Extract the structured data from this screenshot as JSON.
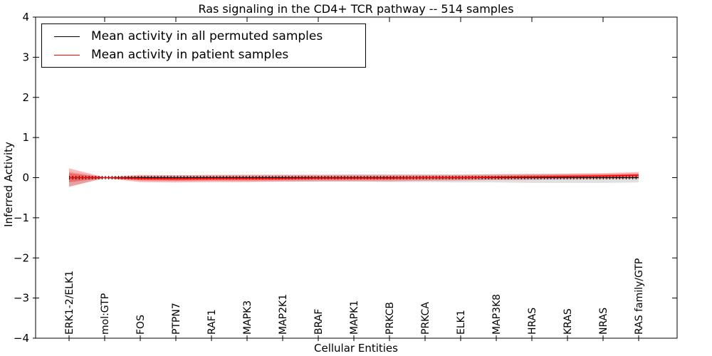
{
  "figure": {
    "title": "Ras signaling in the CD4+ TCR pathway -- 514 samples",
    "xlabel": "Cellular Entities",
    "ylabel": "Inferred Activity"
  },
  "legend": {
    "entries": [
      {
        "label": "Mean activity in all permuted samples",
        "color": "#000000"
      },
      {
        "label": "Mean activity in patient samples",
        "color": "#ff0000"
      }
    ]
  },
  "chart_data": {
    "type": "line",
    "title": "Ras signaling in the CD4+ TCR pathway -- 514 samples",
    "xlabel": "Cellular Entities",
    "ylabel": "Inferred Activity",
    "ylim": [
      -4,
      4
    ],
    "yticks": [
      4,
      3,
      2,
      1,
      0,
      -1,
      -2,
      -3,
      -4
    ],
    "ytick_labels": [
      "4",
      "3",
      "2",
      "1",
      "0",
      "−1",
      "−2",
      "−3",
      "−4"
    ],
    "grid": false,
    "legend_position": "upper left",
    "categories": [
      "ERK1-2/ELK1",
      "mol:GTP",
      "FOS",
      "PTPN7",
      "RAF1",
      "MAPK3",
      "MAP2K1",
      "BRAF",
      "MAPK1",
      "PRKCB",
      "PRKCA",
      "ELK1",
      "MAP3K8",
      "HRAS",
      "KRAS",
      "NRAS",
      "RAS family/GTP"
    ],
    "series": [
      {
        "name": "Mean activity in all permuted samples",
        "color": "#000000",
        "band_color": "#999999",
        "mean": [
          0.0,
          0.0,
          0.0,
          0.0,
          0.0,
          0.0,
          0.0,
          0.0,
          0.0,
          0.0,
          0.0,
          0.0,
          0.0,
          0.0,
          0.0,
          0.0,
          0.0
        ],
        "band_low": [
          -0.22,
          -0.01,
          -0.07,
          -0.08,
          -0.08,
          -0.09,
          -0.09,
          -0.1,
          -0.1,
          -0.11,
          -0.11,
          -0.12,
          -0.12,
          -0.13,
          -0.13,
          -0.13,
          -0.12
        ],
        "band_high": [
          0.15,
          0.01,
          0.05,
          0.06,
          0.06,
          0.07,
          0.07,
          0.07,
          0.08,
          0.08,
          0.08,
          0.08,
          0.09,
          0.09,
          0.09,
          0.09,
          0.08
        ]
      },
      {
        "name": "Mean activity in patient samples",
        "color": "#ff0000",
        "band_color": "#ff0000",
        "mean": [
          0.0,
          0.0,
          -0.02,
          -0.03,
          -0.02,
          -0.02,
          -0.02,
          -0.01,
          -0.01,
          -0.01,
          0.0,
          0.0,
          0.01,
          0.02,
          0.03,
          0.04,
          0.06
        ],
        "band_low": [
          -0.23,
          -0.01,
          -0.11,
          -0.12,
          -0.11,
          -0.11,
          -0.1,
          -0.09,
          -0.09,
          -0.09,
          -0.08,
          -0.07,
          -0.06,
          -0.05,
          -0.04,
          -0.03,
          -0.02
        ],
        "band_high": [
          0.23,
          0.01,
          0.07,
          0.06,
          0.07,
          0.07,
          0.07,
          0.07,
          0.07,
          0.07,
          0.07,
          0.07,
          0.08,
          0.09,
          0.1,
          0.11,
          0.14
        ]
      }
    ]
  }
}
